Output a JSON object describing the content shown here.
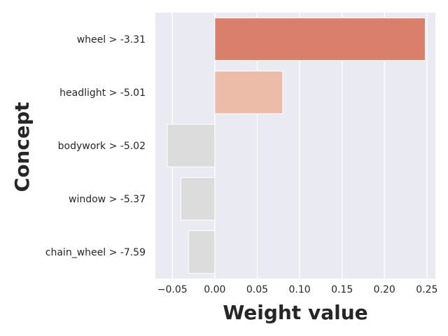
{
  "chart_data": {
    "type": "bar",
    "orientation": "horizontal",
    "xlabel": "Weight value",
    "ylabel": "Concept",
    "categories": [
      "wheel > -3.31",
      "headlight > -5.01",
      "bodywork > -5.02",
      "window > -5.37",
      "chain_wheel > -7.59"
    ],
    "values": [
      0.248,
      0.08,
      -0.056,
      -0.04,
      -0.031
    ],
    "bar_colors": [
      "#db7f6d",
      "#ecbca9",
      "#dcdcdc",
      "#dcdcdc",
      "#dcdcdc"
    ],
    "xlim": [
      -0.07,
      0.26
    ],
    "xticks": [
      -0.05,
      0.0,
      0.05,
      0.1,
      0.15,
      0.2,
      0.25
    ],
    "xtick_labels": [
      "−0.05",
      "0.00",
      "0.05",
      "0.10",
      "0.15",
      "0.20",
      "0.25"
    ],
    "grid": true,
    "background": "#eaeaf2",
    "legend": false
  }
}
